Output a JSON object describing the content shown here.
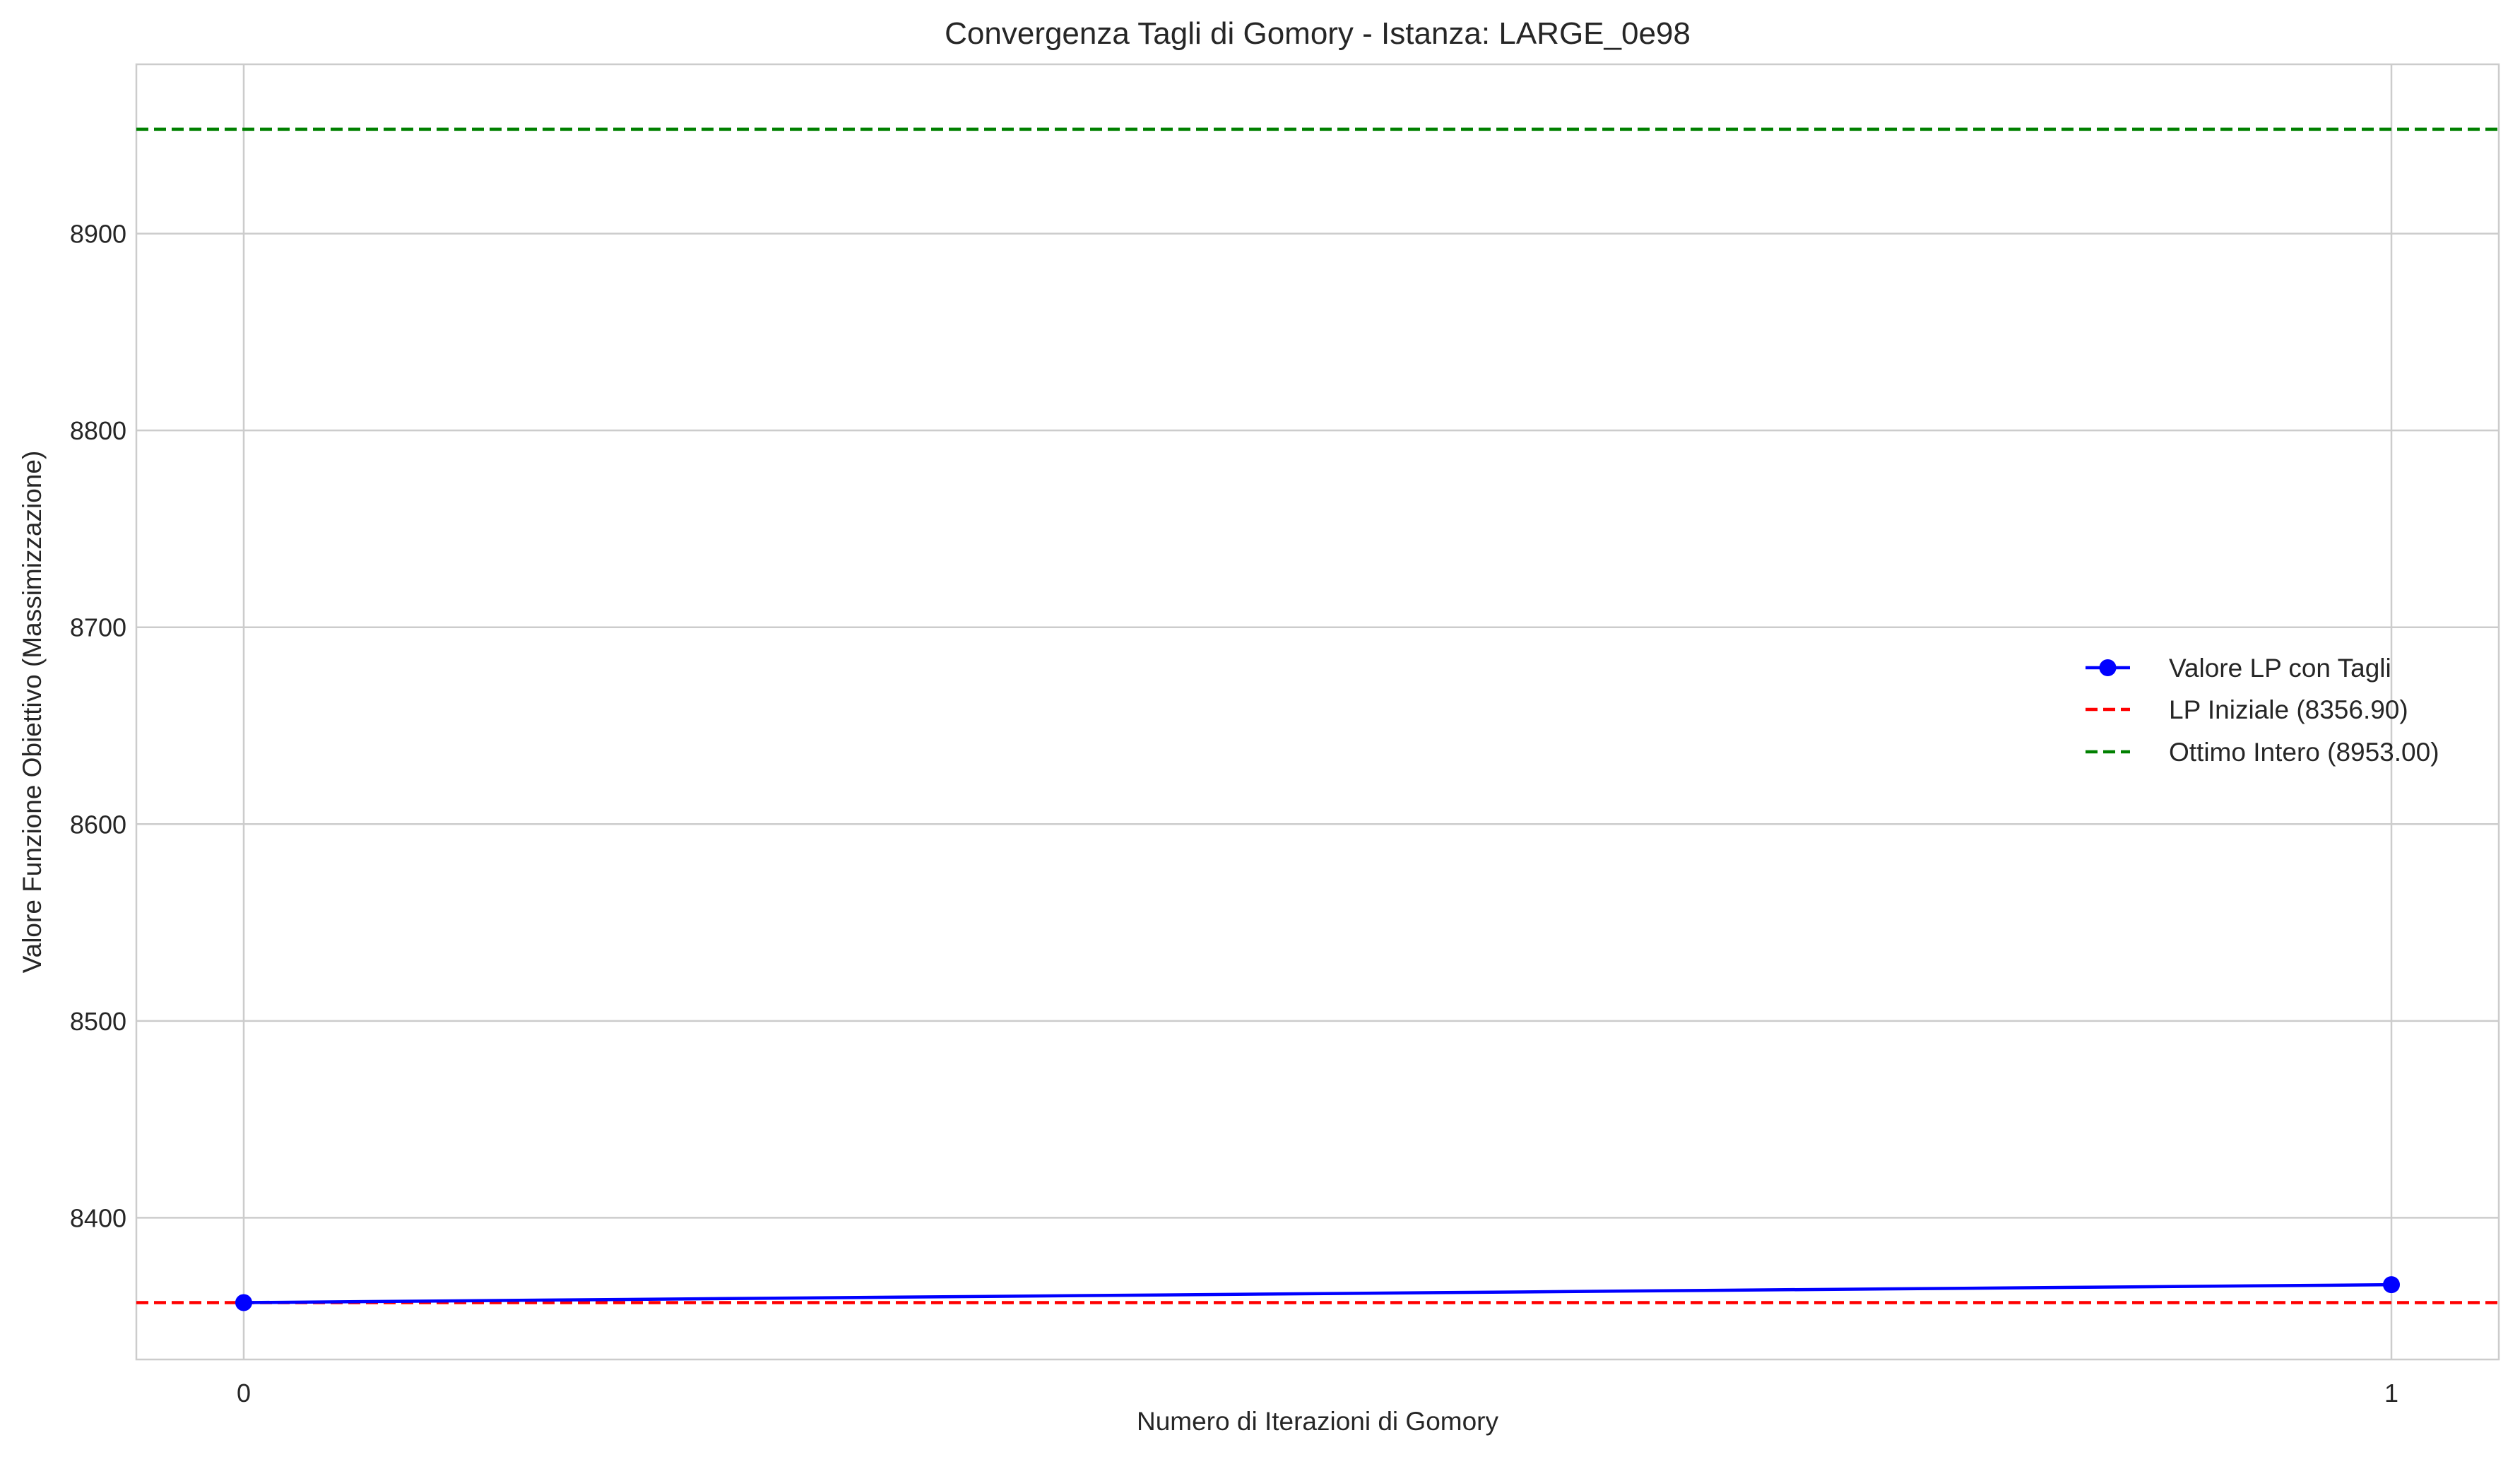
{
  "chart_data": {
    "type": "line",
    "title": "Convergenza Tagli di Gomory - Istanza: LARGE_0e98",
    "xlabel": "Numero di Iterazioni di Gomory",
    "ylabel": "Valore Funzione Obiettivo (Massimizzazione)",
    "xlim": [
      -0.05,
      1.05
    ],
    "ylim": [
      8328,
      8986
    ],
    "xticks": [
      0,
      1
    ],
    "yticks": [
      8400,
      8500,
      8600,
      8700,
      8800,
      8900
    ],
    "grid": true,
    "legend_position": "center-right",
    "series": [
      {
        "name": "Valore LP con Tagli",
        "style": "solid-with-markers",
        "color": "#0000ff",
        "x": [
          0,
          1
        ],
        "y": [
          8356.9,
          8366.0
        ]
      }
    ],
    "reference_lines": [
      {
        "name": "LP Iniziale (8356.90)",
        "y": 8356.9,
        "color": "#ff0000",
        "style": "dashed"
      },
      {
        "name": "Ottimo Intero (8953.00)",
        "y": 8953.0,
        "color": "#008000",
        "style": "dashed"
      }
    ],
    "colors": {
      "grid": "#cccccc",
      "frame": "#cccccc",
      "text": "#262626"
    }
  }
}
